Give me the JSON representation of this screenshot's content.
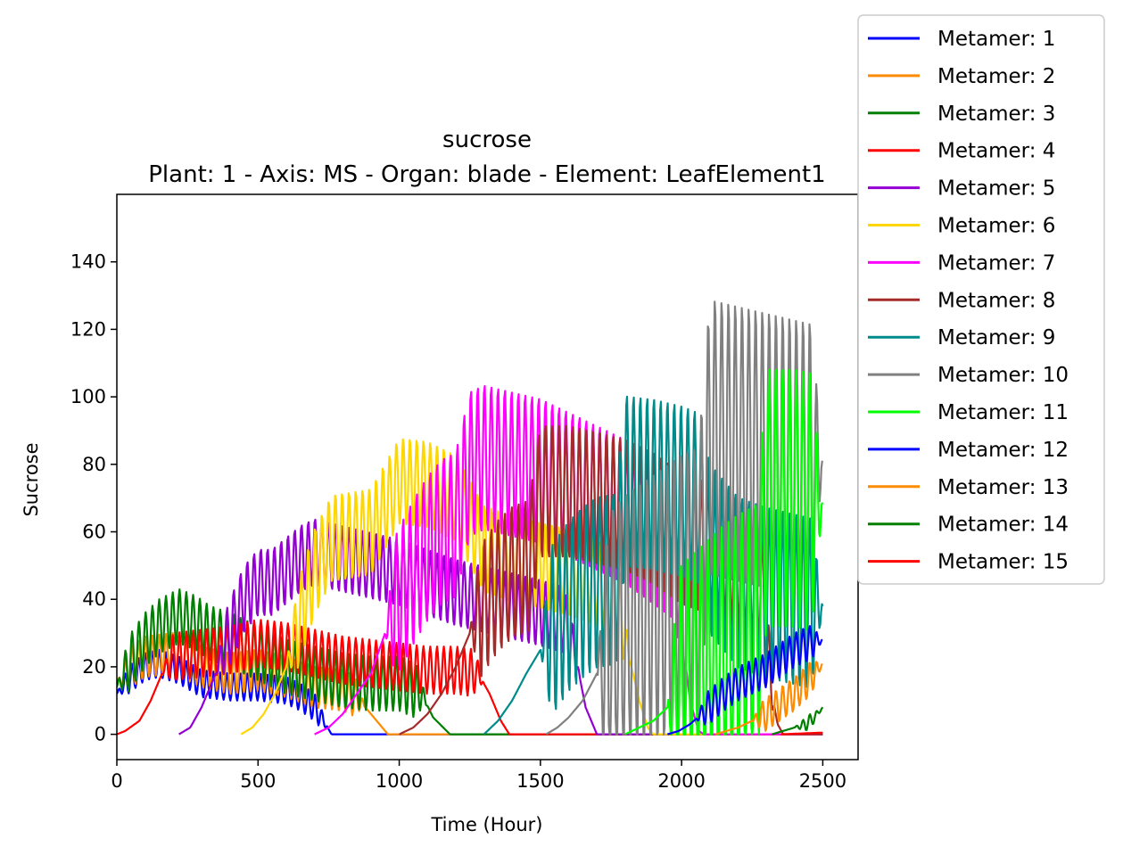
{
  "chart_data": {
    "type": "line",
    "title": "sucrose",
    "subtitle": "Plant: 1 - Axis: MS - Organ: blade - Element: LeafElement1",
    "xlabel": "Time (Hour)",
    "ylabel": "Sucrose",
    "xlim": [
      0,
      2625
    ],
    "ylim": [
      -7.5,
      160
    ],
    "xticks": [
      0,
      500,
      1000,
      1500,
      2000,
      2500
    ],
    "yticks": [
      0,
      20,
      40,
      60,
      80,
      100,
      120,
      140
    ],
    "grid": false,
    "legend_position": "top-right (outside)",
    "series": [
      {
        "name": "Metamer: 1",
        "color": "#0000ff",
        "points": [
          [
            0,
            12
          ],
          [
            40,
            16
          ],
          [
            100,
            20
          ],
          [
            150,
            21
          ],
          [
            220,
            19
          ],
          [
            300,
            15
          ],
          [
            400,
            14
          ],
          [
            500,
            14
          ],
          [
            600,
            13
          ],
          [
            650,
            11
          ],
          [
            700,
            8
          ],
          [
            740,
            3
          ],
          [
            760,
            0
          ],
          [
            2500,
            0
          ]
        ],
        "osc": [
          [
            0,
            750,
            4
          ]
        ]
      },
      {
        "name": "Metamer: 2",
        "color": "#ff8c00",
        "points": [
          [
            0,
            15
          ],
          [
            50,
            20
          ],
          [
            100,
            23
          ],
          [
            200,
            24
          ],
          [
            300,
            20
          ],
          [
            400,
            18
          ],
          [
            500,
            19
          ],
          [
            600,
            17
          ],
          [
            700,
            14
          ],
          [
            800,
            13
          ],
          [
            850,
            11
          ],
          [
            900,
            6
          ],
          [
            960,
            0
          ],
          [
            2500,
            0
          ]
        ],
        "osc": [
          [
            0,
            880,
            6
          ]
        ]
      },
      {
        "name": "Metamer: 3",
        "color": "#008000",
        "points": [
          [
            0,
            14
          ],
          [
            50,
            22
          ],
          [
            100,
            28
          ],
          [
            150,
            32
          ],
          [
            220,
            35
          ],
          [
            280,
            33
          ],
          [
            330,
            30
          ],
          [
            400,
            28
          ],
          [
            500,
            24
          ],
          [
            600,
            20
          ],
          [
            700,
            18
          ],
          [
            800,
            16
          ],
          [
            900,
            15
          ],
          [
            1000,
            15
          ],
          [
            1080,
            12
          ],
          [
            1120,
            5
          ],
          [
            1180,
            0
          ],
          [
            2500,
            0
          ]
        ],
        "osc": [
          [
            0,
            1100,
            8
          ]
        ]
      },
      {
        "name": "Metamer: 4",
        "color": "#ff0000",
        "points": [
          [
            0,
            0
          ],
          [
            30,
            1
          ],
          [
            80,
            4
          ],
          [
            120,
            10
          ],
          [
            160,
            18
          ],
          [
            200,
            23
          ],
          [
            300,
            24
          ],
          [
            400,
            25
          ],
          [
            500,
            27
          ],
          [
            600,
            26
          ],
          [
            700,
            24
          ],
          [
            800,
            22
          ],
          [
            900,
            21
          ],
          [
            1000,
            20
          ],
          [
            1100,
            19
          ],
          [
            1200,
            19
          ],
          [
            1280,
            18
          ],
          [
            1320,
            12
          ],
          [
            1360,
            4
          ],
          [
            1390,
            0
          ],
          [
            2500,
            0
          ]
        ],
        "osc": [
          [
            160,
            1300,
            7
          ]
        ]
      },
      {
        "name": "Metamer: 5",
        "color": "#9400d3",
        "points": [
          [
            220,
            0
          ],
          [
            260,
            2
          ],
          [
            300,
            8
          ],
          [
            350,
            18
          ],
          [
            400,
            30
          ],
          [
            450,
            40
          ],
          [
            500,
            45
          ],
          [
            550,
            45
          ],
          [
            650,
            52
          ],
          [
            700,
            54
          ],
          [
            800,
            52
          ],
          [
            900,
            50
          ],
          [
            1000,
            48
          ],
          [
            1100,
            45
          ],
          [
            1200,
            42
          ],
          [
            1300,
            40
          ],
          [
            1400,
            38
          ],
          [
            1500,
            36
          ],
          [
            1580,
            34
          ],
          [
            1620,
            25
          ],
          [
            1660,
            8
          ],
          [
            1700,
            0
          ],
          [
            2500,
            0
          ]
        ],
        "osc": [
          [
            350,
            1640,
            10
          ]
        ]
      },
      {
        "name": "Metamer: 6",
        "color": "#ffd700",
        "points": [
          [
            440,
            0
          ],
          [
            480,
            2
          ],
          [
            520,
            6
          ],
          [
            560,
            12
          ],
          [
            600,
            20
          ],
          [
            650,
            35
          ],
          [
            700,
            48
          ],
          [
            760,
            58
          ],
          [
            900,
            60
          ],
          [
            1000,
            75
          ],
          [
            1100,
            74
          ],
          [
            1200,
            70
          ],
          [
            1300,
            55
          ],
          [
            1400,
            52
          ],
          [
            1500,
            50
          ],
          [
            1600,
            48
          ],
          [
            1700,
            45
          ],
          [
            1770,
            40
          ],
          [
            1800,
            28
          ],
          [
            1850,
            10
          ],
          [
            1880,
            2
          ],
          [
            1900,
            0
          ],
          [
            2500,
            0
          ]
        ],
        "osc": [
          [
            600,
            1820,
            13
          ]
        ]
      },
      {
        "name": "Metamer: 7",
        "color": "#ff00ff",
        "points": [
          [
            700,
            0
          ],
          [
            750,
            2
          ],
          [
            800,
            6
          ],
          [
            850,
            12
          ],
          [
            900,
            18
          ],
          [
            950,
            30
          ],
          [
            1000,
            40
          ],
          [
            1050,
            48
          ],
          [
            1100,
            55
          ],
          [
            1150,
            60
          ],
          [
            1200,
            62
          ],
          [
            1250,
            80
          ],
          [
            1300,
            82
          ],
          [
            1400,
            80
          ],
          [
            1500,
            78
          ],
          [
            1600,
            74
          ],
          [
            1700,
            70
          ],
          [
            1800,
            66
          ],
          [
            1900,
            60
          ],
          [
            1980,
            55
          ],
          [
            2000,
            30
          ],
          [
            2030,
            10
          ],
          [
            2060,
            1
          ],
          [
            2080,
            0
          ],
          [
            2500,
            0
          ]
        ],
        "osc": [
          [
            950,
            2020,
            22
          ]
        ]
      },
      {
        "name": "Metamer: 8",
        "color": "#a52a2a",
        "points": [
          [
            1000,
            0
          ],
          [
            1050,
            2
          ],
          [
            1100,
            6
          ],
          [
            1150,
            12
          ],
          [
            1200,
            20
          ],
          [
            1250,
            30
          ],
          [
            1300,
            38
          ],
          [
            1350,
            44
          ],
          [
            1400,
            48
          ],
          [
            1460,
            50
          ],
          [
            1500,
            72
          ],
          [
            1600,
            72
          ],
          [
            1700,
            70
          ],
          [
            1800,
            68
          ],
          [
            1900,
            64
          ],
          [
            2000,
            58
          ],
          [
            2100,
            55
          ],
          [
            2200,
            50
          ],
          [
            2280,
            45
          ],
          [
            2300,
            30
          ],
          [
            2320,
            12
          ],
          [
            2340,
            3
          ],
          [
            2360,
            0
          ],
          [
            2500,
            0
          ]
        ],
        "osc": [
          [
            1250,
            2330,
            20
          ]
        ]
      },
      {
        "name": "Metamer: 9",
        "color": "#008b8b",
        "points": [
          [
            1300,
            0
          ],
          [
            1350,
            4
          ],
          [
            1400,
            10
          ],
          [
            1450,
            18
          ],
          [
            1500,
            25
          ],
          [
            1550,
            32
          ],
          [
            1600,
            38
          ],
          [
            1650,
            42
          ],
          [
            1700,
            45
          ],
          [
            1770,
            46
          ],
          [
            1800,
            75
          ],
          [
            1900,
            74
          ],
          [
            2000,
            72
          ],
          [
            2060,
            70
          ],
          [
            2100,
            55
          ],
          [
            2200,
            45
          ],
          [
            2300,
            42
          ],
          [
            2400,
            40
          ],
          [
            2500,
            38
          ]
        ],
        "osc": [
          [
            1500,
            2500,
            26
          ]
        ]
      },
      {
        "name": "Metamer: 10",
        "color": "#808080",
        "points": [
          [
            1520,
            0
          ],
          [
            1560,
            2
          ],
          [
            1600,
            5
          ],
          [
            1650,
            10
          ],
          [
            1700,
            18
          ],
          [
            1750,
            25
          ],
          [
            1800,
            30
          ],
          [
            1900,
            36
          ],
          [
            2000,
            42
          ],
          [
            2060,
            44
          ],
          [
            2100,
            88
          ],
          [
            2200,
            86
          ],
          [
            2300,
            84
          ],
          [
            2400,
            82
          ],
          [
            2500,
            80
          ]
        ],
        "osc": [
          [
            1700,
            2500,
            42
          ]
        ]
      },
      {
        "name": "Metamer: 11",
        "color": "#00ff00",
        "points": [
          [
            1800,
            0
          ],
          [
            1850,
            2
          ],
          [
            1900,
            4
          ],
          [
            1950,
            8
          ],
          [
            2000,
            12
          ],
          [
            2050,
            16
          ],
          [
            2100,
            20
          ],
          [
            2150,
            24
          ],
          [
            2200,
            27
          ],
          [
            2270,
            30
          ],
          [
            2300,
            70
          ],
          [
            2400,
            70
          ],
          [
            2500,
            68
          ]
        ],
        "osc": [
          [
            1950,
            2500,
            38
          ]
        ]
      },
      {
        "name": "Metamer: 12",
        "color": "#0000ff",
        "points": [
          [
            1950,
            0
          ],
          [
            1990,
            1
          ],
          [
            2030,
            3
          ],
          [
            2070,
            6
          ],
          [
            2110,
            9
          ],
          [
            2150,
            12
          ],
          [
            2200,
            15
          ],
          [
            2250,
            17
          ],
          [
            2300,
            19
          ],
          [
            2350,
            22
          ],
          [
            2400,
            25
          ],
          [
            2450,
            27
          ],
          [
            2500,
            28
          ]
        ],
        "osc": [
          [
            2050,
            2500,
            5
          ]
        ]
      },
      {
        "name": "Metamer: 13",
        "color": "#ff8c00",
        "points": [
          [
            2120,
            0
          ],
          [
            2160,
            1
          ],
          [
            2200,
            2
          ],
          [
            2250,
            4
          ],
          [
            2300,
            6
          ],
          [
            2350,
            9
          ],
          [
            2400,
            12
          ],
          [
            2450,
            16
          ],
          [
            2500,
            21
          ]
        ],
        "osc": [
          [
            2250,
            2500,
            5
          ]
        ]
      },
      {
        "name": "Metamer: 14",
        "color": "#008000",
        "points": [
          [
            2320,
            0
          ],
          [
            2360,
            1
          ],
          [
            2400,
            2
          ],
          [
            2440,
            3
          ],
          [
            2470,
            5
          ],
          [
            2500,
            8
          ]
        ],
        "osc": [
          [
            2400,
            2500,
            2
          ]
        ]
      },
      {
        "name": "Metamer: 15",
        "color": "#ff0000",
        "points": [
          [
            2350,
            0
          ],
          [
            2500,
            0.5
          ]
        ],
        "osc": []
      }
    ]
  }
}
